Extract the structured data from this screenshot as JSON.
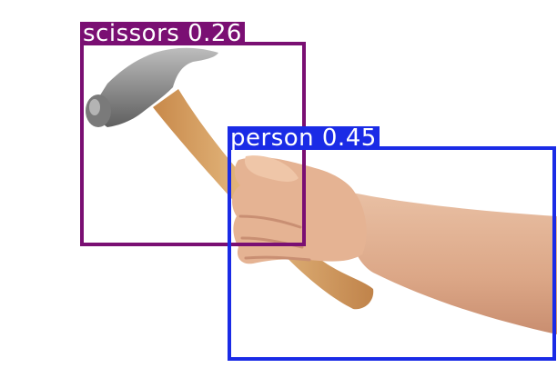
{
  "detections": [
    {
      "id": "scissors",
      "class_name": "scissors",
      "confidence": "0.26",
      "label": "scissors 0.26",
      "color": "#7a0f73"
    },
    {
      "id": "person",
      "class_name": "person",
      "confidence": "0.45",
      "label": "person 0.45",
      "color": "#1a2be6"
    }
  ],
  "scene": {
    "subject": "hammer-held-in-hand",
    "background_color": "#ffffff",
    "hammer_head_color": "#8c8c8c",
    "hammer_handle_color": "#d9a86a",
    "skin_color": "#e7b79a"
  }
}
